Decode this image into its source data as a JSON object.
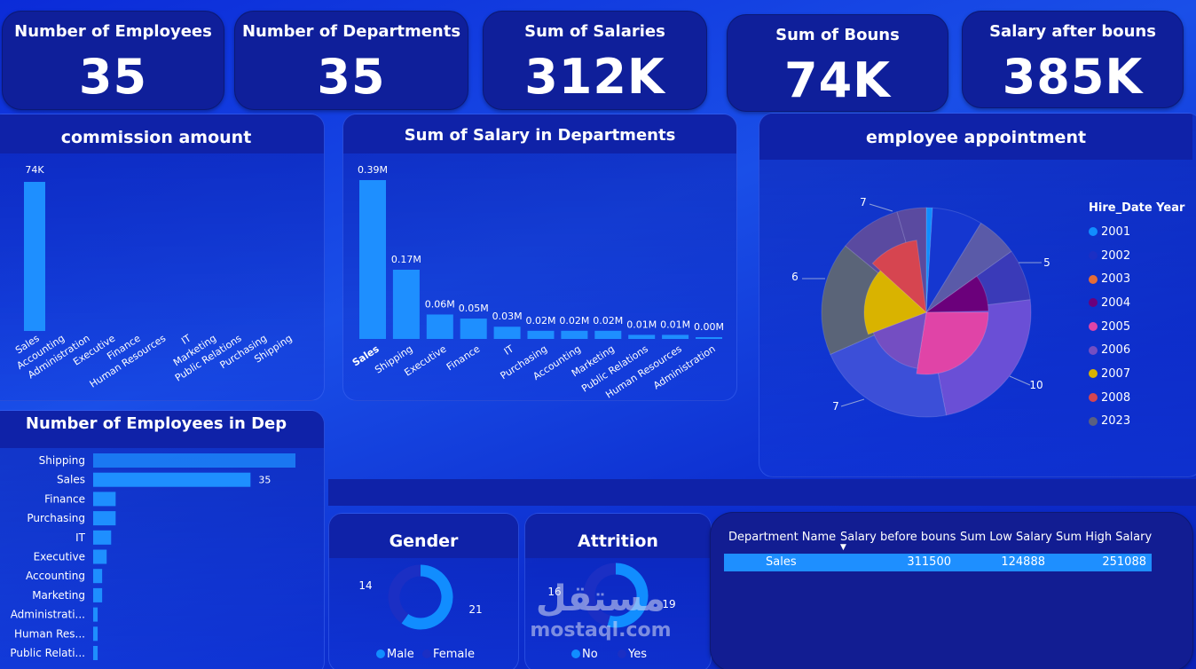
{
  "kpis": [
    {
      "title": "Number of Employees",
      "value": "35"
    },
    {
      "title": "Number of Departments",
      "value": "35"
    },
    {
      "title": "Sum of Salaries",
      "value": "312K"
    },
    {
      "title": "Sum of Bouns",
      "value": "74K"
    },
    {
      "title": "Salary after bouns",
      "value": "385K"
    }
  ],
  "commission": {
    "title": "commission amount"
  },
  "salary_dept": {
    "title": "Sum of Salary in Departments"
  },
  "appointment": {
    "title": "employee appointment",
    "legend_title": "Hire_Date Year"
  },
  "emp_dep": {
    "title": "Number of Employees in Dep"
  },
  "gender": {
    "title": "Gender",
    "legend": [
      "Male",
      "Female"
    ]
  },
  "attrition": {
    "title": "Attrition",
    "legend": [
      "No",
      "Yes"
    ]
  },
  "table": {
    "headers": [
      "Department Name",
      "Salary before bouns",
      "Sum Low Salary",
      "Sum High Salary"
    ],
    "rows": [
      [
        "Sales",
        "311500",
        "124888",
        "251088"
      ]
    ]
  },
  "watermark": {
    "arabic": "مستقل",
    "latin": "mostaql.com"
  },
  "colors": {
    "bar": "#1e8fff",
    "card": "#0f1f9a",
    "highlight": "#1e8fff"
  },
  "chart_data": [
    {
      "id": "commission",
      "type": "bar",
      "title": "commission amount",
      "categories": [
        "Sales",
        "Accounting",
        "Administration",
        "Executive",
        "Finance",
        "Human Resources",
        "IT",
        "Marketing",
        "Public Relations",
        "Purchasing",
        "Shipping"
      ],
      "values": [
        74,
        0,
        0,
        0,
        0,
        0,
        0,
        0,
        0,
        0,
        0
      ],
      "data_labels": [
        "74K",
        "",
        "",
        "",
        "",
        "",
        "",
        "",
        "",
        "",
        ""
      ],
      "unit": "K"
    },
    {
      "id": "salary_dept",
      "type": "bar",
      "title": "Sum of Salary in Departments",
      "categories": [
        "Sales",
        "Shipping",
        "Executive",
        "Finance",
        "IT",
        "Purchasing",
        "Accounting",
        "Marketing",
        "Public Relations",
        "Human Resources",
        "Administration"
      ],
      "values": [
        0.39,
        0.17,
        0.06,
        0.05,
        0.03,
        0.02,
        0.02,
        0.02,
        0.01,
        0.01,
        0.0
      ],
      "data_labels": [
        "0.39M",
        "0.17M",
        "0.06M",
        "0.05M",
        "0.03M",
        "0.02M",
        "0.02M",
        "0.02M",
        "0.01M",
        "0.01M",
        "0.00M"
      ],
      "unit": "M"
    },
    {
      "id": "appointment",
      "type": "pie",
      "title": "employee appointment",
      "legend_title": "Hire_Date Year",
      "series": [
        {
          "name": "2001",
          "value": 0.4,
          "color": "#118dff"
        },
        {
          "name": "2002",
          "value": 2,
          "color": "#1b2fc4"
        },
        {
          "name": "2003",
          "value": 2,
          "color": "#e66c37"
        },
        {
          "name": "2004",
          "value": 2,
          "color": "#6b007b"
        },
        {
          "name": "2005",
          "value": 5,
          "color": "#e044a7"
        },
        {
          "name": "2006",
          "value": 10,
          "color": "#744ec2"
        },
        {
          "name": "2007",
          "value": 3,
          "color": "#d9b300"
        },
        {
          "name": "2008",
          "value": 3,
          "color": "#d64550"
        },
        {
          "name": "2023",
          "value": 6,
          "color": "#5a6080"
        }
      ],
      "outer_labels": [
        "7",
        "5",
        "10",
        "7",
        "6"
      ]
    },
    {
      "id": "emp_dep",
      "type": "bar",
      "orientation": "horizontal",
      "title": "Number of Employees in Dep",
      "categories": [
        "Shipping",
        "Sales",
        "Finance",
        "Purchasing",
        "IT",
        "Executive",
        "Accounting",
        "Marketing",
        "Administrati...",
        "Human Res...",
        "Public Relati..."
      ],
      "values": [
        45,
        35,
        5,
        5,
        4,
        3,
        2,
        2,
        1,
        1,
        1
      ],
      "data_labels": [
        "",
        "35",
        "",
        "",
        "",
        "",
        "",
        "",
        "",
        "",
        ""
      ]
    },
    {
      "id": "gender",
      "type": "pie",
      "title": "Gender",
      "series": [
        {
          "name": "Male",
          "value": 21,
          "color": "#118dff"
        },
        {
          "name": "Female",
          "value": 14,
          "color": "#1b2fc4"
        }
      ],
      "labels": [
        "14",
        "21"
      ]
    },
    {
      "id": "attrition",
      "type": "pie",
      "title": "Attrition",
      "series": [
        {
          "name": "No",
          "value": 19,
          "color": "#118dff"
        },
        {
          "name": "Yes",
          "value": 16,
          "color": "#1b2fc4"
        }
      ],
      "labels": [
        "16",
        "19"
      ]
    }
  ]
}
